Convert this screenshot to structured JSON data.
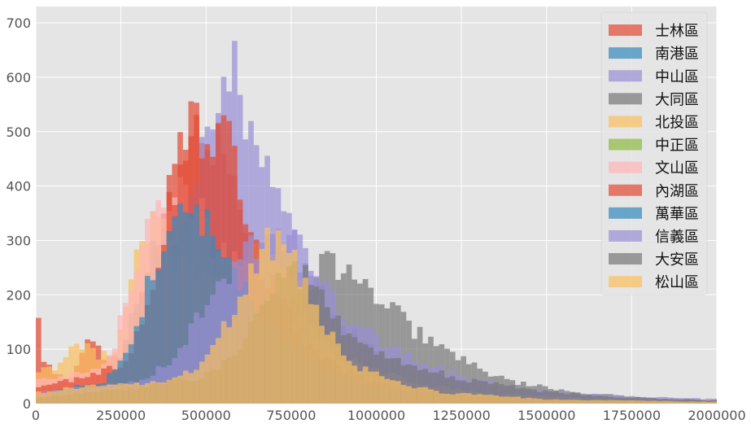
{
  "chart_data": {
    "type": "histogram",
    "title": "",
    "xlabel": "",
    "ylabel": "",
    "xlim": [
      0,
      2000000
    ],
    "ylim": [
      0,
      730
    ],
    "grid": true,
    "legend_position": "top-right",
    "x_ticks": [
      {
        "value": 0,
        "label": "0"
      },
      {
        "value": 250000,
        "label": "250000"
      },
      {
        "value": 500000,
        "label": "500000"
      },
      {
        "value": 750000,
        "label": "750000"
      },
      {
        "value": 1000000,
        "label": "1000000"
      },
      {
        "value": 1250000,
        "label": "1250000"
      },
      {
        "value": 1500000,
        "label": "1500000"
      },
      {
        "value": 1750000,
        "label": "1750000"
      },
      {
        "value": 2000000,
        "label": "2000000"
      }
    ],
    "y_ticks": [
      {
        "value": 0,
        "label": "0"
      },
      {
        "value": 100,
        "label": "100"
      },
      {
        "value": 200,
        "label": "200"
      },
      {
        "value": 300,
        "label": "300"
      },
      {
        "value": 400,
        "label": "400"
      },
      {
        "value": 500,
        "label": "500"
      },
      {
        "value": 600,
        "label": "600"
      },
      {
        "value": 700,
        "label": "700"
      }
    ],
    "bin_width": 16000,
    "series": [
      {
        "name": "士林區",
        "color": "#E24A33",
        "opacity": 0.7,
        "profile": [
          [
            0,
            210
          ],
          [
            16000,
            90
          ],
          [
            48000,
            60
          ],
          [
            96000,
            40
          ],
          [
            150000,
            120
          ],
          [
            200000,
            90
          ],
          [
            250000,
            80
          ],
          [
            320000,
            200
          ],
          [
            380000,
            340
          ],
          [
            420000,
            490
          ],
          [
            460000,
            520
          ],
          [
            500000,
            470
          ],
          [
            540000,
            500
          ],
          [
            580000,
            420
          ],
          [
            620000,
            290
          ],
          [
            680000,
            200
          ],
          [
            750000,
            130
          ],
          [
            850000,
            60
          ],
          [
            1000000,
            25
          ],
          [
            1200000,
            12
          ],
          [
            1500000,
            6
          ],
          [
            2000000,
            2
          ]
        ]
      },
      {
        "name": "南港區",
        "color": "#348ABD",
        "opacity": 0.7,
        "profile": [
          [
            0,
            0
          ],
          [
            40000,
            10
          ],
          [
            150000,
            20
          ],
          [
            230000,
            60
          ],
          [
            290000,
            170
          ],
          [
            350000,
            280
          ],
          [
            420000,
            330
          ],
          [
            480000,
            320
          ],
          [
            540000,
            300
          ],
          [
            600000,
            240
          ],
          [
            660000,
            180
          ],
          [
            740000,
            120
          ],
          [
            850000,
            60
          ],
          [
            1000000,
            25
          ],
          [
            1250000,
            10
          ],
          [
            1600000,
            4
          ],
          [
            2000000,
            1
          ]
        ]
      },
      {
        "name": "中山區",
        "color": "#988ED5",
        "opacity": 0.7,
        "profile": [
          [
            0,
            30
          ],
          [
            100000,
            40
          ],
          [
            200000,
            45
          ],
          [
            280000,
            50
          ],
          [
            330000,
            70
          ],
          [
            380000,
            150
          ],
          [
            420000,
            300
          ],
          [
            460000,
            420
          ],
          [
            500000,
            500
          ],
          [
            540000,
            530
          ],
          [
            570000,
            600
          ],
          [
            585000,
            695
          ],
          [
            600000,
            540
          ],
          [
            640000,
            490
          ],
          [
            700000,
            430
          ],
          [
            760000,
            300
          ],
          [
            800000,
            260
          ],
          [
            860000,
            180
          ],
          [
            940000,
            120
          ],
          [
            1000000,
            90
          ],
          [
            1100000,
            60
          ],
          [
            1250000,
            40
          ],
          [
            1400000,
            25
          ],
          [
            1600000,
            16
          ],
          [
            1800000,
            10
          ],
          [
            2000000,
            6
          ]
        ]
      },
      {
        "name": "大同區",
        "color": "#777777",
        "opacity": 0.7,
        "profile": [
          [
            0,
            0
          ],
          [
            100000,
            20
          ],
          [
            250000,
            40
          ],
          [
            400000,
            50
          ],
          [
            500000,
            60
          ],
          [
            600000,
            100
          ],
          [
            700000,
            170
          ],
          [
            780000,
            200
          ],
          [
            820000,
            240
          ],
          [
            880000,
            260
          ],
          [
            920000,
            240
          ],
          [
            980000,
            200
          ],
          [
            1050000,
            170
          ],
          [
            1120000,
            130
          ],
          [
            1200000,
            100
          ],
          [
            1280000,
            70
          ],
          [
            1400000,
            40
          ],
          [
            1600000,
            20
          ],
          [
            1800000,
            10
          ],
          [
            2000000,
            5
          ]
        ]
      },
      {
        "name": "北投區",
        "color": "#FBC15E",
        "opacity": 0.7,
        "profile": [
          [
            0,
            60
          ],
          [
            60000,
            70
          ],
          [
            120000,
            110
          ],
          [
            180000,
            90
          ],
          [
            230000,
            100
          ],
          [
            260000,
            180
          ],
          [
            300000,
            280
          ],
          [
            340000,
            350
          ],
          [
            380000,
            300
          ],
          [
            420000,
            260
          ],
          [
            480000,
            230
          ],
          [
            540000,
            220
          ],
          [
            600000,
            230
          ],
          [
            650000,
            280
          ],
          [
            700000,
            260
          ],
          [
            760000,
            230
          ],
          [
            800000,
            170
          ],
          [
            860000,
            110
          ],
          [
            950000,
            70
          ],
          [
            1100000,
            40
          ],
          [
            1300000,
            20
          ],
          [
            1600000,
            10
          ],
          [
            2000000,
            4
          ]
        ]
      },
      {
        "name": "中正區",
        "color": "#8EBA42",
        "opacity": 0.7,
        "profile": [
          [
            0,
            5
          ],
          [
            200000,
            10
          ],
          [
            400000,
            20
          ],
          [
            550000,
            60
          ],
          [
            650000,
            140
          ],
          [
            720000,
            170
          ],
          [
            780000,
            130
          ],
          [
            850000,
            80
          ],
          [
            950000,
            40
          ],
          [
            1100000,
            20
          ],
          [
            1400000,
            8
          ],
          [
            2000000,
            3
          ]
        ]
      },
      {
        "name": "文山區",
        "color": "#FFB5B8",
        "opacity": 0.7,
        "profile": [
          [
            0,
            40
          ],
          [
            80000,
            50
          ],
          [
            150000,
            60
          ],
          [
            220000,
            80
          ],
          [
            270000,
            200
          ],
          [
            320000,
            330
          ],
          [
            370000,
            400
          ],
          [
            420000,
            390
          ],
          [
            470000,
            360
          ],
          [
            520000,
            300
          ],
          [
            580000,
            260
          ],
          [
            640000,
            220
          ],
          [
            700000,
            180
          ],
          [
            780000,
            140
          ],
          [
            880000,
            90
          ],
          [
            1000000,
            50
          ],
          [
            1200000,
            20
          ],
          [
            1500000,
            8
          ],
          [
            2000000,
            3
          ]
        ]
      },
      {
        "name": "內湖區",
        "color": "#E24A33",
        "opacity": 0.7,
        "profile": [
          [
            0,
            30
          ],
          [
            80000,
            40
          ],
          [
            150000,
            50
          ],
          [
            250000,
            70
          ],
          [
            320000,
            150
          ],
          [
            380000,
            330
          ],
          [
            420000,
            450
          ],
          [
            460000,
            510
          ],
          [
            500000,
            500
          ],
          [
            540000,
            480
          ],
          [
            580000,
            460
          ],
          [
            620000,
            350
          ],
          [
            660000,
            260
          ],
          [
            720000,
            180
          ],
          [
            800000,
            110
          ],
          [
            900000,
            60
          ],
          [
            1050000,
            30
          ],
          [
            1300000,
            12
          ],
          [
            1600000,
            5
          ],
          [
            2000000,
            2
          ]
        ]
      },
      {
        "name": "萬華區",
        "color": "#348ABD",
        "opacity": 0.7,
        "profile": [
          [
            0,
            10
          ],
          [
            100000,
            30
          ],
          [
            200000,
            40
          ],
          [
            280000,
            100
          ],
          [
            320000,
            200
          ],
          [
            360000,
            280
          ],
          [
            400000,
            330
          ],
          [
            440000,
            340
          ],
          [
            480000,
            340
          ],
          [
            520000,
            320
          ],
          [
            560000,
            280
          ],
          [
            600000,
            220
          ],
          [
            660000,
            160
          ],
          [
            740000,
            110
          ],
          [
            840000,
            70
          ],
          [
            950000,
            40
          ],
          [
            1100000,
            20
          ],
          [
            1400000,
            8
          ],
          [
            2000000,
            2
          ]
        ]
      },
      {
        "name": "信義區",
        "color": "#988ED5",
        "opacity": 0.7,
        "profile": [
          [
            0,
            20
          ],
          [
            150000,
            30
          ],
          [
            300000,
            40
          ],
          [
            400000,
            80
          ],
          [
            450000,
            130
          ],
          [
            520000,
            200
          ],
          [
            580000,
            260
          ],
          [
            640000,
            300
          ],
          [
            700000,
            310
          ],
          [
            760000,
            290
          ],
          [
            820000,
            230
          ],
          [
            900000,
            170
          ],
          [
            1000000,
            120
          ],
          [
            1120000,
            80
          ],
          [
            1250000,
            50
          ],
          [
            1400000,
            30
          ],
          [
            1600000,
            18
          ],
          [
            1800000,
            12
          ],
          [
            2000000,
            8
          ]
        ]
      },
      {
        "name": "大安區",
        "color": "#777777",
        "opacity": 0.7,
        "profile": [
          [
            0,
            10
          ],
          [
            150000,
            20
          ],
          [
            300000,
            30
          ],
          [
            400000,
            40
          ],
          [
            500000,
            50
          ],
          [
            600000,
            100
          ],
          [
            680000,
            200
          ],
          [
            740000,
            250
          ],
          [
            800000,
            230
          ],
          [
            860000,
            170
          ],
          [
            940000,
            110
          ],
          [
            1050000,
            80
          ],
          [
            1150000,
            60
          ],
          [
            1300000,
            40
          ],
          [
            1500000,
            22
          ],
          [
            1700000,
            12
          ],
          [
            2000000,
            6
          ]
        ]
      },
      {
        "name": "松山區",
        "color": "#FBC15E",
        "opacity": 0.7,
        "profile": [
          [
            0,
            20
          ],
          [
            120000,
            30
          ],
          [
            250000,
            35
          ],
          [
            380000,
            40
          ],
          [
            460000,
            60
          ],
          [
            520000,
            100
          ],
          [
            580000,
            170
          ],
          [
            640000,
            240
          ],
          [
            680000,
            290
          ],
          [
            720000,
            300
          ],
          [
            760000,
            270
          ],
          [
            800000,
            200
          ],
          [
            860000,
            130
          ],
          [
            940000,
            70
          ],
          [
            1050000,
            40
          ],
          [
            1200000,
            20
          ],
          [
            1500000,
            8
          ],
          [
            2000000,
            3
          ]
        ]
      }
    ]
  }
}
